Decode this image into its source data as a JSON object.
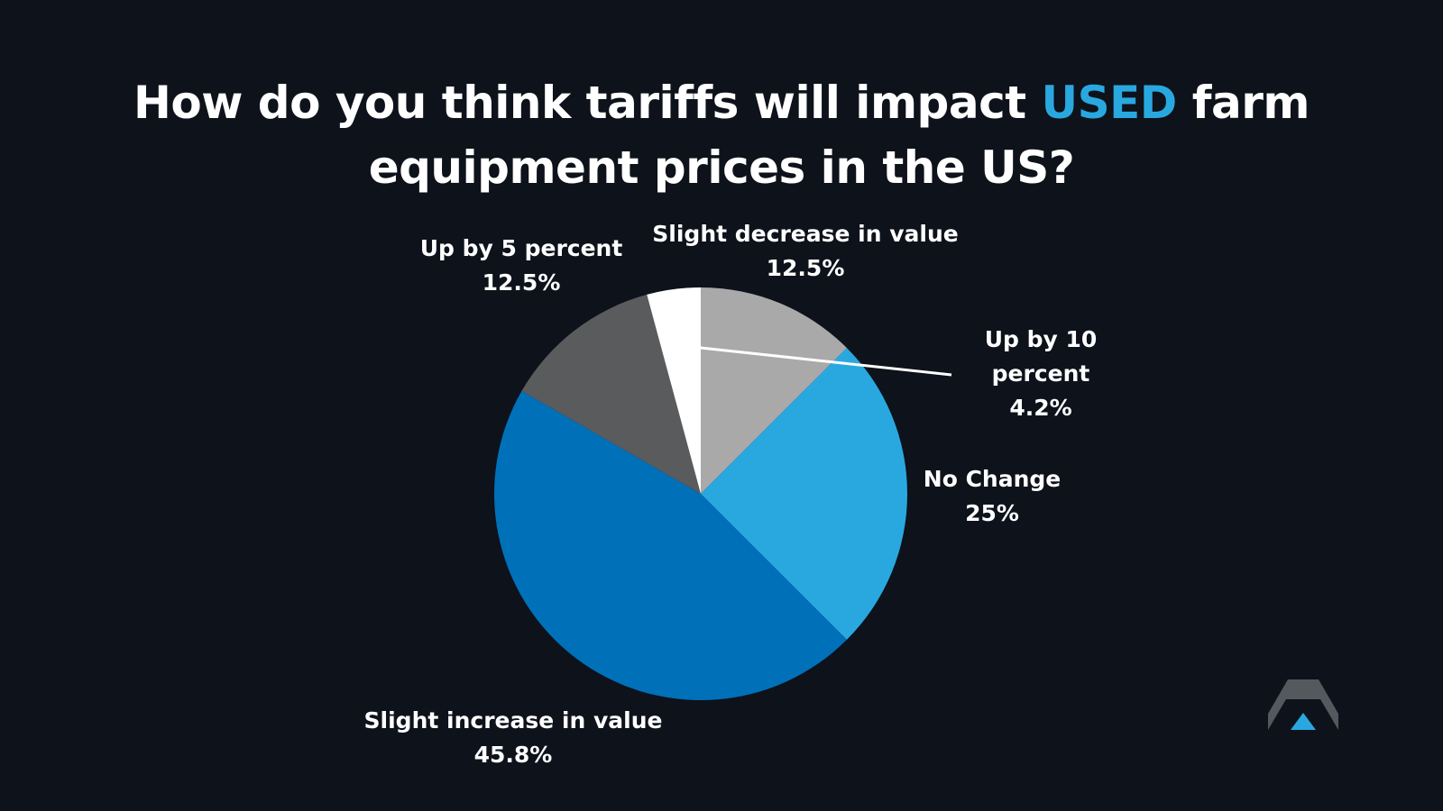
{
  "chart_data": {
    "type": "pie",
    "title_parts": {
      "before": "How do you think tariffs will impact ",
      "highlight": "USED",
      "after_line1": " farm",
      "line2": "equipment prices in the US?"
    },
    "slices": [
      {
        "label": "Slight decrease in value",
        "value": 12.5,
        "display": "12.5%",
        "color": "#a9a9a9"
      },
      {
        "label": "No Change",
        "value": 25,
        "display": "25%",
        "color": "#29a8e0"
      },
      {
        "label": "Slight increase in value",
        "value": 45.8,
        "display": "45.8%",
        "color": "#0070b9"
      },
      {
        "label": "Up by 5 percent",
        "value": 12.5,
        "display": "12.5%",
        "color": "#5a5b5d"
      },
      {
        "label": "Up by 10 percent",
        "value": 4.2,
        "display": "4.2%",
        "color": "#ffffff"
      }
    ],
    "label_lines": {
      "up10_line1": "Up by 10",
      "up10_line2": "percent"
    }
  },
  "colors": {
    "background": "#0d121b",
    "highlight": "#29a8e0",
    "text": "#ffffff"
  },
  "logo": {
    "icon": "chevron-up-icon"
  }
}
